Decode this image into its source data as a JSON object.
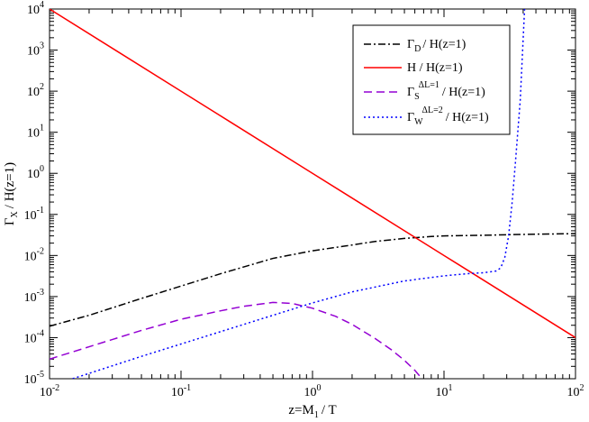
{
  "chart_data": {
    "type": "line",
    "title": "",
    "xlabel": {
      "main": "z=M",
      "sub": "1",
      "tail": "/ T"
    },
    "ylabel": {
      "main": "Γ",
      "sub": "X",
      "tail": "/ H(z=1)"
    },
    "xscale": "log",
    "yscale": "log",
    "xlim": [
      0.01,
      100
    ],
    "ylim": [
      1e-05,
      10000
    ],
    "grid": false,
    "legend_position": "top-right",
    "x_ticks": [
      {
        "base": "10",
        "exp": "-2",
        "value": 0.01
      },
      {
        "base": "10",
        "exp": "-1",
        "value": 0.1
      },
      {
        "base": "10",
        "exp": "0",
        "value": 1
      },
      {
        "base": "10",
        "exp": "1",
        "value": 10
      },
      {
        "base": "10",
        "exp": "2",
        "value": 100
      }
    ],
    "y_ticks": [
      {
        "base": "10",
        "exp": "-5",
        "value": 1e-05
      },
      {
        "base": "10",
        "exp": "-4",
        "value": 0.0001
      },
      {
        "base": "10",
        "exp": "-3",
        "value": 0.001
      },
      {
        "base": "10",
        "exp": "-2",
        "value": 0.01
      },
      {
        "base": "10",
        "exp": "-1",
        "value": 0.1
      },
      {
        "base": "10",
        "exp": "0",
        "value": 1
      },
      {
        "base": "10",
        "exp": "1",
        "value": 10
      },
      {
        "base": "10",
        "exp": "2",
        "value": 100
      },
      {
        "base": "10",
        "exp": "3",
        "value": 1000
      },
      {
        "base": "10",
        "exp": "4",
        "value": 10000
      }
    ],
    "series": [
      {
        "key": "gamma_d",
        "legend": {
          "main": "Γ",
          "sub": "D",
          "sup": "",
          "tail": "/ H(z=1)"
        },
        "color": "#000000",
        "dash": "8,3,2,3",
        "x": [
          0.01,
          0.02,
          0.05,
          0.1,
          0.2,
          0.5,
          1,
          2,
          3,
          5,
          8,
          10,
          20,
          30,
          50,
          100
        ],
        "y": [
          0.00019,
          0.00035,
          0.0009,
          0.0018,
          0.0036,
          0.0085,
          0.013,
          0.018,
          0.022,
          0.026,
          0.029,
          0.03,
          0.031,
          0.032,
          0.033,
          0.034
        ]
      },
      {
        "key": "hubble",
        "legend": {
          "main": "H / H(z=1)",
          "sub": "",
          "sup": "",
          "tail": ""
        },
        "color": "#ff0000",
        "dash": "",
        "x": [
          0.01,
          0.1,
          1,
          10,
          100
        ],
        "y": [
          10000,
          100,
          1,
          0.01,
          0.0001
        ]
      },
      {
        "key": "gamma_s",
        "legend": {
          "main": "Γ",
          "sub": "S",
          "sup": "ΔL=1",
          "tail": "/ H(z=1)"
        },
        "color": "#9400d3",
        "dash": "9,5",
        "x": [
          0.01,
          0.02,
          0.05,
          0.1,
          0.2,
          0.3,
          0.5,
          0.7,
          1,
          1.5,
          2,
          3,
          4,
          5,
          6,
          6.8
        ],
        "y": [
          3e-05,
          6e-05,
          0.00015,
          0.00028,
          0.00045,
          0.00058,
          0.00072,
          0.00068,
          0.00052,
          0.00033,
          0.00021,
          9.5e-05,
          5e-05,
          2.8e-05,
          1.6e-05,
          1e-05
        ]
      },
      {
        "key": "gamma_w",
        "legend": {
          "main": "Γ",
          "sub": "W",
          "sup": "ΔL=2",
          "tail": "/ H(z=1)"
        },
        "color": "#0000ff",
        "dash": "2,3",
        "x": [
          0.015,
          0.02,
          0.05,
          0.1,
          0.2,
          0.5,
          1,
          2,
          5,
          10,
          15,
          20,
          25,
          27,
          29,
          31,
          33,
          35,
          38,
          41
        ],
        "y": [
          1e-05,
          1.35e-05,
          3.5e-05,
          7e-05,
          0.00014,
          0.00035,
          0.0007,
          0.0013,
          0.0024,
          0.0032,
          0.0036,
          0.0038,
          0.0042,
          0.005,
          0.009,
          0.03,
          0.2,
          2,
          60,
          10000
        ]
      }
    ]
  }
}
